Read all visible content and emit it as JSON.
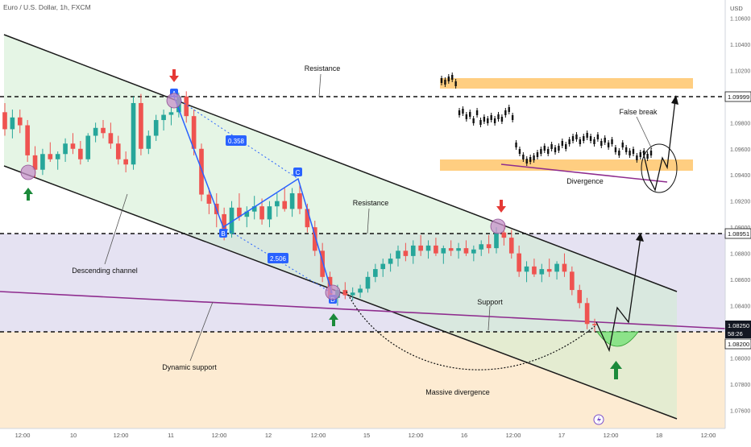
{
  "header": {
    "title": "Euro / U.S. Dollar, 1h, FXCM"
  },
  "chart_data": {
    "type": "candlestick",
    "symbol": "Euro / U.S. Dollar",
    "timeframe": "1h",
    "source": "FXCM",
    "currency": "USD",
    "y_ticks": [
      "1.10600",
      "1.10400",
      "1.10200",
      "1.09800",
      "1.09600",
      "1.09400",
      "1.09200",
      "1.09000",
      "1.08800",
      "1.08600",
      "1.08400",
      "1.08000",
      "1.07800",
      "1.07600"
    ],
    "x_ticks": [
      "12:00",
      "10",
      "12:00",
      "11",
      "12:00",
      "12",
      "12:00",
      "15",
      "12:00",
      "16",
      "12:00",
      "17",
      "12:00",
      "18",
      "12:00"
    ],
    "price_labels": [
      {
        "value": "1.09999",
        "style": "outline"
      },
      {
        "value": "1.08951",
        "style": "outline"
      },
      {
        "value": "1.08250",
        "sub": "58:26",
        "style": "filled"
      },
      {
        "value": "1.08200",
        "style": "outline"
      }
    ],
    "levels": {
      "upper": 1.09999,
      "middle": 1.08951,
      "lower": 1.082
    },
    "candles": [
      [
        1.0988,
        1.0995,
        1.097,
        1.0975
      ],
      [
        1.0975,
        1.099,
        1.0968,
        1.0984
      ],
      [
        1.0984,
        1.099,
        1.0972,
        1.0978
      ],
      [
        1.0978,
        1.0982,
        1.095,
        1.0955
      ],
      [
        1.0955,
        1.0962,
        1.0938,
        1.0944
      ],
      [
        1.0944,
        1.096,
        1.094,
        1.0956
      ],
      [
        1.0956,
        1.0965,
        1.095,
        1.0952
      ],
      [
        1.0952,
        1.0958,
        1.0944,
        1.0956
      ],
      [
        1.0956,
        1.0968,
        1.095,
        1.0964
      ],
      [
        1.0964,
        1.0972,
        1.0956,
        1.096
      ],
      [
        1.096,
        1.0966,
        1.0948,
        1.0952
      ],
      [
        1.0952,
        1.0972,
        1.095,
        1.097
      ],
      [
        1.097,
        1.098,
        1.0965,
        1.0976
      ],
      [
        1.0976,
        1.0982,
        1.0968,
        1.0972
      ],
      [
        1.0972,
        1.098,
        1.096,
        1.0964
      ],
      [
        1.0964,
        1.097,
        1.0948,
        1.0952
      ],
      [
        1.0952,
        1.0958,
        1.0942,
        1.0948
      ],
      [
        1.0948,
        1.1,
        1.0944,
        1.0995
      ],
      [
        1.0995,
        1.1002,
        1.0955,
        1.096
      ],
      [
        1.096,
        1.0974,
        1.0956,
        1.097
      ],
      [
        1.097,
        1.0986,
        1.0966,
        1.0982
      ],
      [
        1.0982,
        1.099,
        1.0974,
        1.0986
      ],
      [
        1.0986,
        1.0992,
        1.0978,
        1.0988
      ],
      [
        1.0988,
        1.1003,
        1.0984,
        1.1
      ],
      [
        1.1,
        1.1004,
        1.098,
        1.0985
      ],
      [
        1.0985,
        1.099,
        1.0955,
        1.096
      ],
      [
        1.096,
        1.0964,
        1.092,
        1.0925
      ],
      [
        1.0925,
        1.093,
        1.091,
        1.0918
      ],
      [
        1.0918,
        1.0926,
        1.09,
        1.091
      ],
      [
        1.091,
        1.0915,
        1.089,
        1.0895
      ],
      [
        1.0895,
        1.092,
        1.0892,
        1.0915
      ],
      [
        1.0915,
        1.0926,
        1.0905,
        1.0908
      ],
      [
        1.0908,
        1.0916,
        1.09,
        1.0912
      ],
      [
        1.0912,
        1.0924,
        1.0906,
        1.0916
      ],
      [
        1.0916,
        1.0922,
        1.0902,
        1.0906
      ],
      [
        1.0906,
        1.092,
        1.09,
        1.0916
      ],
      [
        1.0916,
        1.0926,
        1.0908,
        1.092
      ],
      [
        1.092,
        1.093,
        1.0912,
        1.0914
      ],
      [
        1.0914,
        1.093,
        1.0908,
        1.0926
      ],
      [
        1.0926,
        1.0934,
        1.091,
        1.0914
      ],
      [
        1.0914,
        1.0918,
        1.0896,
        1.09
      ],
      [
        1.09,
        1.0905,
        1.0878,
        1.0882
      ],
      [
        1.0882,
        1.0888,
        1.0858,
        1.0862
      ],
      [
        1.0862,
        1.0866,
        1.0842,
        1.0846
      ],
      [
        1.0846,
        1.0856,
        1.084,
        1.0852
      ],
      [
        1.0852,
        1.0858,
        1.0845,
        1.0848
      ],
      [
        1.0848,
        1.0854,
        1.0844,
        1.085
      ],
      [
        1.085,
        1.0856,
        1.0846,
        1.0853
      ],
      [
        1.0853,
        1.0866,
        1.085,
        1.0862
      ],
      [
        1.0862,
        1.0872,
        1.0858,
        1.0868
      ],
      [
        1.0868,
        1.0876,
        1.0862,
        1.0872
      ],
      [
        1.0872,
        1.088,
        1.0866,
        1.0876
      ],
      [
        1.0876,
        1.0886,
        1.087,
        1.0882
      ],
      [
        1.0882,
        1.0888,
        1.0874,
        1.0878
      ],
      [
        1.0878,
        1.089,
        1.0872,
        1.0886
      ],
      [
        1.0886,
        1.0894,
        1.0878,
        1.0882
      ],
      [
        1.0882,
        1.089,
        1.0876,
        1.0886
      ],
      [
        1.0886,
        1.0892,
        1.0878,
        1.088
      ],
      [
        1.088,
        1.0886,
        1.0872,
        1.0884
      ],
      [
        1.0884,
        1.089,
        1.0878,
        1.0882
      ],
      [
        1.0882,
        1.0888,
        1.0876,
        1.0884
      ],
      [
        1.0884,
        1.089,
        1.0878,
        1.088
      ],
      [
        1.088,
        1.0886,
        1.0874,
        1.0883
      ],
      [
        1.0883,
        1.089,
        1.0878,
        1.0887
      ],
      [
        1.0887,
        1.0894,
        1.088,
        1.0884
      ],
      [
        1.0884,
        1.09,
        1.088,
        1.0896
      ],
      [
        1.0896,
        1.0902,
        1.0886,
        1.0892
      ],
      [
        1.0892,
        1.0898,
        1.0876,
        1.088
      ],
      [
        1.088,
        1.0886,
        1.0862,
        1.0866
      ],
      [
        1.0866,
        1.0874,
        1.0858,
        1.087
      ],
      [
        1.087,
        1.0876,
        1.0862,
        1.0864
      ],
      [
        1.0864,
        1.0872,
        1.0858,
        1.0868
      ],
      [
        1.0868,
        1.0876,
        1.0862,
        1.0866
      ],
      [
        1.0866,
        1.0874,
        1.086,
        1.0872
      ],
      [
        1.0872,
        1.088,
        1.0862,
        1.0866
      ],
      [
        1.0866,
        1.087,
        1.0848,
        1.0852
      ],
      [
        1.0852,
        1.0856,
        1.0838,
        1.0842
      ],
      [
        1.0842,
        1.0846,
        1.0822,
        1.0826
      ],
      [
        1.0826,
        1.083,
        1.082,
        1.0825
      ]
    ],
    "channel": {
      "label": "Descending channel"
    },
    "abcd": {
      "points": [
        "A",
        "B",
        "C",
        "D"
      ],
      "ratios": [
        "0.358",
        "2.506"
      ]
    },
    "annotations": [
      "Resistance",
      "Resistance",
      "Support",
      "Dynamic support",
      "Descending channel",
      "Massive divergence",
      "False break",
      "Divergence"
    ],
    "inset": {
      "description_labels": [
        "False break",
        "Divergence"
      ]
    }
  },
  "colors": {
    "bull": "#26a69a",
    "bear": "#ef5350",
    "channel_fill": "#d9f0d9",
    "band_upper": "#dcdcf0",
    "band_lower": "#fde8cc",
    "orange_zone": "#ffc56b",
    "support_line": "#9c27b0",
    "label_bg": "#131722"
  }
}
